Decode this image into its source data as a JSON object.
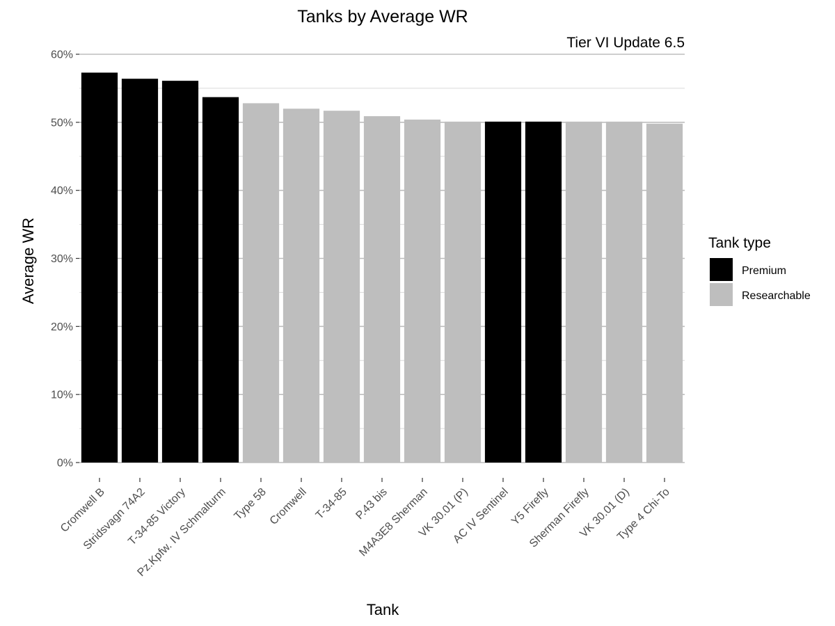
{
  "chart_data": {
    "type": "bar",
    "title": "Tanks by Average WR",
    "subtitle": "Tier VI Update 6.5",
    "xlabel": "Tank",
    "ylabel": "Average WR",
    "ylim": [
      0,
      0.6
    ],
    "y_ticks": [
      0,
      0.1,
      0.2,
      0.3,
      0.4,
      0.5,
      0.6
    ],
    "y_tick_labels": [
      "0%",
      "10%",
      "20%",
      "30%",
      "40%",
      "50%",
      "60%"
    ],
    "grid": true,
    "legend_position": "right",
    "categories": [
      "Cromwell B",
      "Stridsvagn 74A2",
      "T-34-85 Victory",
      "Pz.Kpfw. IV Schmalturm",
      "Type 58",
      "Cromwell",
      "T-34-85",
      "P.43 bis",
      "M4A3E8 Sherman",
      "VK 30.01 (P)",
      "AC IV Sentinel",
      "Y5 Firefly",
      "Sherman Firefly",
      "VK 30.01 (D)",
      "Type 4 Chi-To"
    ],
    "values": [
      0.573,
      0.564,
      0.561,
      0.537,
      0.528,
      0.52,
      0.517,
      0.509,
      0.504,
      0.501,
      0.501,
      0.501,
      0.501,
      0.501,
      0.498
    ],
    "groups": [
      "Premium",
      "Premium",
      "Premium",
      "Premium",
      "Researchable",
      "Researchable",
      "Researchable",
      "Researchable",
      "Researchable",
      "Researchable",
      "Premium",
      "Premium",
      "Researchable",
      "Researchable",
      "Researchable"
    ],
    "legend": {
      "title": "Tank type",
      "entries": [
        {
          "name": "Premium",
          "color": "#000000"
        },
        {
          "name": "Researchable",
          "color": "#bebebe"
        }
      ]
    }
  }
}
